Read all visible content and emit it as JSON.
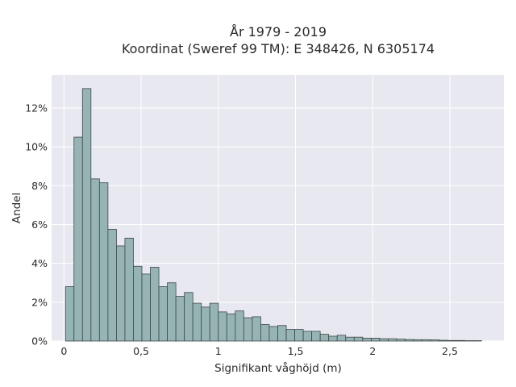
{
  "chart_data": {
    "type": "bar",
    "title": [
      "År 1979 - 2019",
      "Koordinat (Sweref 99 TM): E 348426, N 6305174"
    ],
    "xlabel": "Signifikant våghöjd (m)",
    "ylabel": "Andel",
    "xlim": [
      -0.08,
      2.85
    ],
    "ylim": [
      0,
      13.7
    ],
    "xticks": [
      0,
      0.5,
      1,
      1.5,
      2,
      2.5
    ],
    "xtick_labels": [
      "0",
      "0,5",
      "1",
      "1,5",
      "2",
      "2,5"
    ],
    "yticks": [
      0,
      2,
      4,
      6,
      8,
      10,
      12
    ],
    "ytick_labels": [
      "0%",
      "2%",
      "4%",
      "6%",
      "8%",
      "10%",
      "12%"
    ],
    "grid": true,
    "bin_width": 0.055,
    "bin_start": 0.01,
    "values": [
      2.8,
      10.5,
      13.0,
      8.35,
      8.15,
      5.75,
      4.9,
      5.3,
      3.85,
      3.45,
      3.8,
      2.8,
      3.0,
      2.3,
      2.5,
      1.95,
      1.75,
      1.95,
      1.5,
      1.4,
      1.55,
      1.2,
      1.25,
      0.85,
      0.75,
      0.8,
      0.6,
      0.6,
      0.5,
      0.5,
      0.35,
      0.25,
      0.3,
      0.2,
      0.2,
      0.15,
      0.15,
      0.12,
      0.12,
      0.1,
      0.08,
      0.07,
      0.07,
      0.06,
      0.04,
      0.03,
      0.03,
      0.02,
      0.02
    ]
  },
  "colors": {
    "plot_background": "#e8e8f1",
    "bar_fill": "#97b4b4",
    "bar_stroke": "#3e4747",
    "grid": "#ffffff"
  }
}
